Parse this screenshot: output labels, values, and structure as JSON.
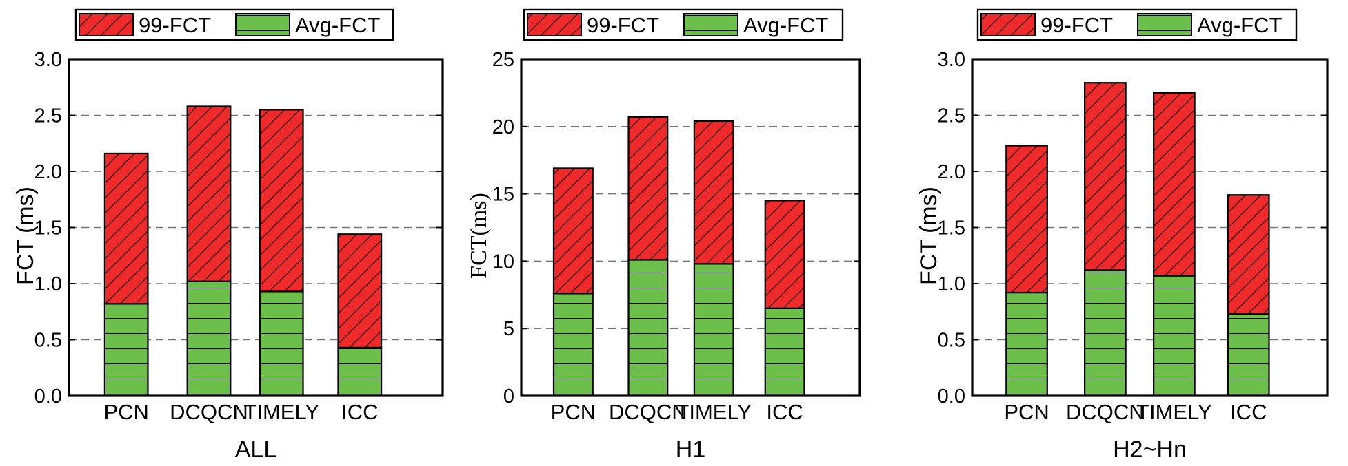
{
  "chart_data": [
    {
      "type": "bar",
      "stacked": true,
      "title": "ALL",
      "ylabel": "FCT (ms)",
      "xlabel": "",
      "categories": [
        "PCN",
        "DCQCN",
        "TIMELY",
        "ICC"
      ],
      "ylim": [
        0,
        3.0
      ],
      "yticks": [
        "0.0",
        "0.5",
        "1.0",
        "1.5",
        "2.0",
        "2.5",
        "3.0"
      ],
      "grid": "horizontal dashed",
      "legend": "top",
      "series": [
        {
          "name": "99-FCT",
          "color": "#ee2a2a",
          "pattern": "diagonal",
          "values": [
            1.34,
            1.56,
            1.62,
            1.01
          ]
        },
        {
          "name": "Avg-FCT",
          "color": "#6dbf4b",
          "pattern": "horizontal",
          "values": [
            0.82,
            1.02,
            0.93,
            0.43
          ]
        }
      ],
      "totals": [
        2.16,
        2.58,
        2.55,
        1.44
      ]
    },
    {
      "type": "bar",
      "stacked": true,
      "title": "H1",
      "ylabel": "FCT(ms)",
      "xlabel": "",
      "categories": [
        "PCN",
        "DCQCN",
        "TIMELY",
        "ICC"
      ],
      "ylim": [
        0,
        25
      ],
      "yticks": [
        "0",
        "5",
        "10",
        "15",
        "20",
        "25"
      ],
      "grid": "horizontal dashed",
      "legend": "top",
      "series": [
        {
          "name": "99-FCT",
          "color": "#ee2a2a",
          "pattern": "diagonal",
          "values": [
            9.3,
            10.6,
            10.6,
            8.0
          ]
        },
        {
          "name": "Avg-FCT",
          "color": "#6dbf4b",
          "pattern": "horizontal",
          "values": [
            7.6,
            10.1,
            9.8,
            6.5
          ]
        }
      ],
      "totals": [
        16.9,
        20.7,
        20.4,
        14.5
      ]
    },
    {
      "type": "bar",
      "stacked": true,
      "title": "H2~Hn",
      "ylabel": "FCT (ms)",
      "xlabel": "",
      "categories": [
        "PCN",
        "DCQCN",
        "TIMELY",
        "ICC"
      ],
      "ylim": [
        0,
        3.0
      ],
      "yticks": [
        "0.0",
        "0.5",
        "1.0",
        "1.5",
        "2.0",
        "2.5",
        "3.0"
      ],
      "grid": "horizontal dashed",
      "legend": "top",
      "series": [
        {
          "name": "99-FCT",
          "color": "#ee2a2a",
          "pattern": "diagonal",
          "values": [
            1.31,
            1.67,
            1.63,
            1.06
          ]
        },
        {
          "name": "Avg-FCT",
          "color": "#6dbf4b",
          "pattern": "horizontal",
          "values": [
            0.92,
            1.12,
            1.07,
            0.73
          ]
        }
      ],
      "totals": [
        2.23,
        2.79,
        2.7,
        1.79
      ]
    }
  ]
}
